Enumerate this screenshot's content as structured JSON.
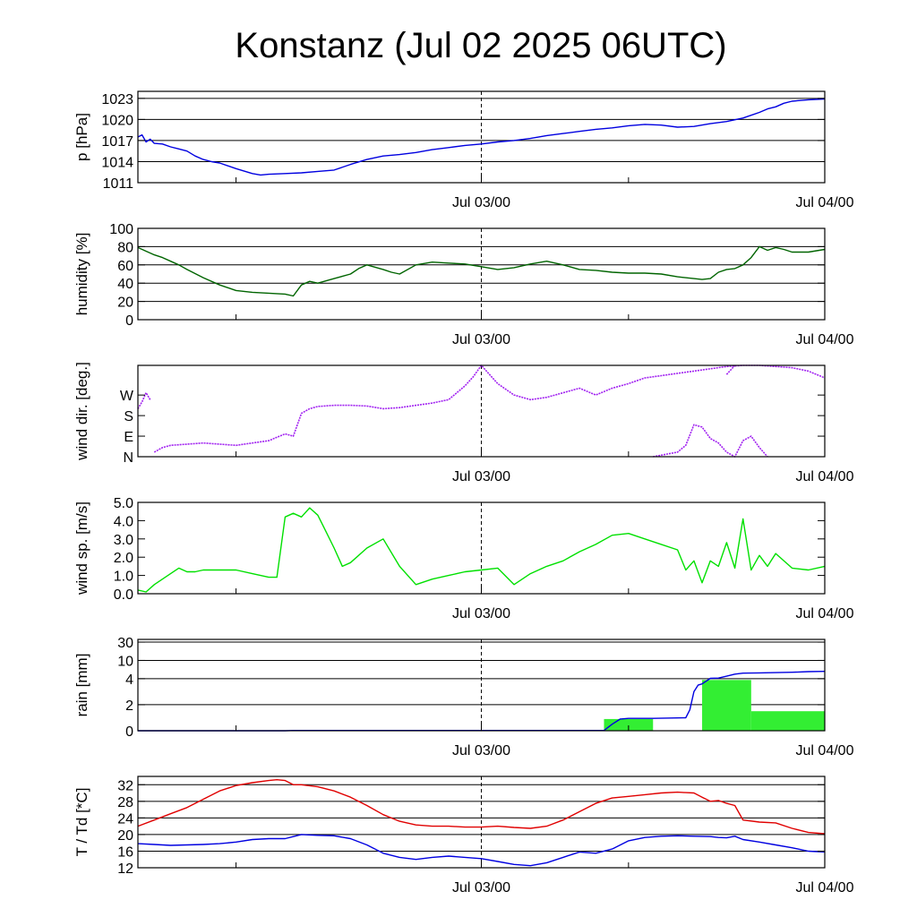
{
  "title": "Konstanz (Jul 02 2025 06UTC)",
  "x_axis": {
    "start": "Jul 02 06UTC",
    "end": "Jul 04 00UTC",
    "ticks": [
      {
        "hours": 42,
        "label": "Jul 03/00"
      },
      {
        "hours": 84,
        "label": "Jul 04/00"
      }
    ],
    "marker_hours": 42
  },
  "chart_data": [
    {
      "type": "line",
      "ylabel": "p [hPa]",
      "ylim": [
        1011,
        1024
      ],
      "yticks": [
        1011,
        1014,
        1017,
        1020,
        1023
      ],
      "grid": true,
      "series": [
        {
          "color": "#0000e0",
          "x": [
            0,
            0.5,
            1,
            1.5,
            2,
            3,
            4,
            5,
            6,
            7,
            8,
            9,
            10,
            12,
            14,
            15,
            16,
            18,
            20,
            22,
            24,
            26,
            28,
            30,
            32,
            34,
            36,
            38,
            40,
            42,
            44,
            46,
            48,
            50,
            52,
            54,
            56,
            58,
            60,
            62,
            64,
            66,
            68,
            70,
            72,
            74,
            76,
            77,
            78,
            79,
            80,
            82,
            84
          ],
          "y": [
            1017.5,
            1017.8,
            1016.8,
            1017.2,
            1016.6,
            1016.5,
            1016.1,
            1015.8,
            1015.5,
            1014.8,
            1014.3,
            1014.0,
            1013.8,
            1013.0,
            1012.3,
            1012.1,
            1012.2,
            1012.3,
            1012.4,
            1012.6,
            1012.8,
            1013.6,
            1014.3,
            1014.8,
            1015.0,
            1015.3,
            1015.7,
            1016.0,
            1016.3,
            1016.5,
            1016.8,
            1017.0,
            1017.3,
            1017.7,
            1018.0,
            1018.3,
            1018.6,
            1018.8,
            1019.1,
            1019.3,
            1019.2,
            1018.9,
            1019.0,
            1019.4,
            1019.7,
            1020.2,
            1021.0,
            1021.5,
            1021.8,
            1022.3,
            1022.6,
            1022.8,
            1022.9
          ]
        }
      ]
    },
    {
      "type": "line",
      "ylabel": "humidity [%]",
      "ylim": [
        0,
        100
      ],
      "yticks": [
        0,
        20,
        40,
        60,
        80,
        100
      ],
      "grid": true,
      "series": [
        {
          "color": "#006400",
          "x": [
            0,
            1,
            2,
            3,
            4,
            5,
            6,
            8,
            10,
            12,
            14,
            16,
            18,
            19,
            20,
            21,
            22,
            24,
            26,
            27,
            28,
            30,
            31,
            32,
            34,
            36,
            38,
            40,
            42,
            44,
            46,
            48,
            50,
            52,
            54,
            56,
            58,
            60,
            62,
            64,
            66,
            68,
            69,
            70,
            71,
            72,
            73,
            74,
            75,
            76,
            77,
            78,
            79,
            80,
            82,
            84
          ],
          "y": [
            79,
            75,
            71,
            68,
            64,
            60,
            55,
            46,
            38,
            32,
            30,
            29,
            28,
            26,
            38,
            42,
            40,
            45,
            50,
            56,
            60,
            55,
            52,
            50,
            60,
            63,
            62,
            61,
            58,
            55,
            57,
            61,
            64,
            60,
            55,
            54,
            52,
            51,
            51,
            50,
            47,
            45,
            44,
            45,
            52,
            55,
            56,
            60,
            68,
            80,
            76,
            79,
            77,
            74,
            74,
            77
          ]
        }
      ]
    },
    {
      "type": "scatter",
      "ylabel": "wind dir. [deg.]",
      "ylim": [
        0,
        400
      ],
      "yticks": [
        0,
        90,
        180,
        270
      ],
      "ytick_labels": [
        "N",
        "E",
        "S",
        "W"
      ],
      "grid": false,
      "series": [
        {
          "color": "#a020f0",
          "x": [
            0,
            0.5,
            1,
            1.5
          ],
          "y": [
            210,
            240,
            280,
            250
          ]
        },
        {
          "color": "#a020f0",
          "x": [
            2,
            3,
            4,
            6,
            8,
            10,
            12,
            14,
            16,
            18,
            19,
            20,
            21,
            22,
            24,
            26,
            28,
            30,
            32,
            34,
            36,
            38,
            40,
            41,
            42,
            44,
            46,
            48,
            50,
            52,
            54,
            56,
            58,
            60,
            62,
            64,
            66,
            68,
            70,
            72,
            74,
            76,
            78,
            80,
            82,
            84
          ],
          "y": [
            20,
            40,
            50,
            55,
            60,
            55,
            50,
            60,
            70,
            100,
            90,
            190,
            210,
            220,
            225,
            225,
            222,
            210,
            215,
            225,
            235,
            250,
            310,
            350,
            400,
            320,
            270,
            250,
            260,
            280,
            300,
            270,
            300,
            320,
            345,
            355,
            365,
            375,
            385,
            395,
            400,
            405,
            395,
            390,
            375,
            345
          ]
        },
        {
          "color": "#a020f0",
          "x": [
            63,
            66,
            67,
            68,
            69,
            70,
            71,
            72,
            73,
            74,
            75,
            76,
            77
          ],
          "y": [
            0,
            20,
            50,
            140,
            130,
            80,
            60,
            20,
            0,
            70,
            90,
            40,
            0
          ]
        },
        {
          "color": "#a020f0",
          "x": [
            72,
            73
          ],
          "y": [
            360,
            400
          ]
        }
      ]
    },
    {
      "type": "line",
      "ylabel": "wind sp. [m/s]",
      "ylim": [
        0,
        5
      ],
      "yticks": [
        0.0,
        1.0,
        2.0,
        3.0,
        4.0,
        5.0
      ],
      "ytick_labels": [
        "0.0",
        "1.0",
        "2.0",
        "3.0",
        "4.0",
        "5.0"
      ],
      "grid": false,
      "series": [
        {
          "color": "#00e000",
          "x": [
            0,
            1,
            2,
            3,
            4,
            5,
            6,
            7,
            8,
            9,
            10,
            12,
            14,
            16,
            17,
            18,
            19,
            20,
            21,
            22,
            23,
            24,
            25,
            26,
            28,
            30,
            32,
            34,
            36,
            38,
            40,
            42,
            44,
            46,
            48,
            50,
            52,
            54,
            56,
            58,
            60,
            62,
            64,
            66,
            67,
            68,
            69,
            70,
            71,
            72,
            73,
            74,
            75,
            76,
            77,
            78,
            80,
            82,
            84
          ],
          "y": [
            0.2,
            0.1,
            0.5,
            0.8,
            1.1,
            1.4,
            1.2,
            1.2,
            1.3,
            1.3,
            1.3,
            1.3,
            1.1,
            0.9,
            0.9,
            4.2,
            4.4,
            4.2,
            4.7,
            4.3,
            3.4,
            2.5,
            1.5,
            1.7,
            2.5,
            3.0,
            1.5,
            0.5,
            0.8,
            1.0,
            1.2,
            1.3,
            1.4,
            0.5,
            1.1,
            1.5,
            1.8,
            2.3,
            2.7,
            3.2,
            3.3,
            3.0,
            2.7,
            2.4,
            1.3,
            1.8,
            0.6,
            1.8,
            1.5,
            2.8,
            1.4,
            4.1,
            1.3,
            2.1,
            1.5,
            2.2,
            1.4,
            1.3,
            1.5
          ]
        }
      ]
    },
    {
      "type": "bar+line",
      "ylabel": "rain [mm]",
      "ylim": [
        0,
        30
      ],
      "yticks": [
        0,
        2,
        4,
        10,
        30
      ],
      "scale": "nonlinear",
      "grid": true,
      "bars": {
        "color": "#33ee33",
        "intervals": [
          {
            "from": 57,
            "to": 63,
            "value": 0.9
          },
          {
            "from": 69,
            "to": 75,
            "value": 3.9
          },
          {
            "from": 75,
            "to": 84,
            "value": 1.5
          }
        ]
      },
      "series": [
        {
          "color": "#0000e0",
          "x": [
            0,
            18,
            19,
            57,
            58,
            59,
            60,
            63,
            67,
            67.5,
            68,
            68.5,
            69,
            70,
            71,
            72,
            73,
            74,
            76,
            78,
            80,
            82,
            84
          ],
          "y": [
            0,
            0,
            0.02,
            0.02,
            0.5,
            0.9,
            0.95,
            0.95,
            1.0,
            1.6,
            3.0,
            3.5,
            3.6,
            4.1,
            4.2,
            4.8,
            5.5,
            5.8,
            5.9,
            6.0,
            6.1,
            6.3,
            6.4
          ]
        }
      ]
    },
    {
      "type": "line",
      "ylabel": "T / Td [*C]",
      "ylim": [
        12,
        34
      ],
      "yticks": [
        12,
        16,
        20,
        24,
        28,
        32
      ],
      "grid": true,
      "series": [
        {
          "color": "#e00000",
          "x": [
            0,
            2,
            4,
            6,
            8,
            10,
            12,
            14,
            16,
            17,
            18,
            19,
            20,
            22,
            24,
            26,
            28,
            30,
            32,
            34,
            36,
            38,
            40,
            42,
            44,
            46,
            48,
            50,
            52,
            54,
            56,
            58,
            60,
            62,
            64,
            66,
            67,
            68,
            69,
            70,
            71,
            72,
            73,
            74,
            76,
            78,
            80,
            82,
            84
          ],
          "y": [
            22,
            23.5,
            25,
            26.5,
            28.5,
            30.5,
            31.8,
            32.5,
            33,
            33.2,
            33,
            32,
            32,
            31.5,
            30.5,
            29,
            27,
            24.8,
            23.2,
            22.3,
            22,
            22,
            21.8,
            21.8,
            22,
            21.7,
            21.5,
            22,
            23.5,
            25.5,
            27.5,
            28.8,
            29.2,
            29.6,
            30,
            30.2,
            30.1,
            30,
            29,
            28,
            28.2,
            27.5,
            27,
            23.5,
            23,
            22.8,
            21.5,
            20.5,
            20.2
          ]
        },
        {
          "color": "#0000e0",
          "x": [
            0,
            2,
            4,
            6,
            8,
            10,
            12,
            14,
            16,
            18,
            19,
            20,
            22,
            24,
            26,
            28,
            30,
            32,
            34,
            36,
            38,
            40,
            42,
            44,
            46,
            48,
            50,
            52,
            54,
            56,
            58,
            60,
            62,
            64,
            66,
            68,
            70,
            71,
            72,
            73,
            74,
            76,
            78,
            80,
            82,
            84
          ],
          "y": [
            17.8,
            17.6,
            17.4,
            17.5,
            17.6,
            17.8,
            18.2,
            18.8,
            19,
            19,
            19.5,
            20,
            19.8,
            19.7,
            19,
            17.5,
            15.5,
            14.5,
            14,
            14.5,
            14.8,
            14.5,
            14.2,
            13.5,
            12.8,
            12.5,
            13.2,
            14.5,
            15.8,
            15.5,
            16.5,
            18.5,
            19.3,
            19.6,
            19.7,
            19.6,
            19.5,
            19.3,
            19.2,
            19.6,
            18.8,
            18.2,
            17.5,
            16.8,
            16.0,
            15.8
          ]
        }
      ]
    }
  ]
}
